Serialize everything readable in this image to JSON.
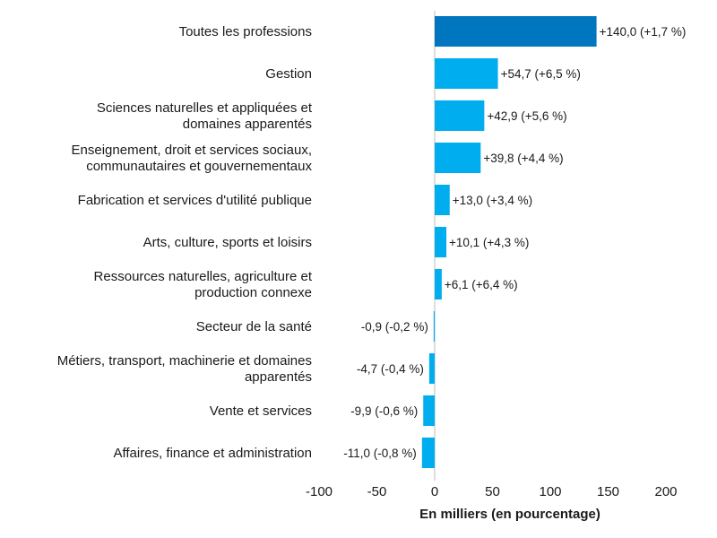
{
  "chart_data": {
    "type": "bar",
    "orientation": "horizontal",
    "categories": [
      [
        "Toutes les professions"
      ],
      [
        "Gestion"
      ],
      [
        "Sciences naturelles et appliquées et",
        "domaines apparentés"
      ],
      [
        "Enseignement, droit et services sociaux,",
        "communautaires et gouvernementaux"
      ],
      [
        "Fabrication et services d'utilité publique"
      ],
      [
        "Arts, culture, sports et loisirs"
      ],
      [
        "Ressources naturelles, agriculture et",
        "production connexe"
      ],
      [
        "Secteur de la santé"
      ],
      [
        "Métiers, transport, machinerie et domaines",
        "apparentés"
      ],
      [
        "Vente et services"
      ],
      [
        "Affaires, finance et administration"
      ]
    ],
    "values": [
      140.0,
      54.7,
      42.9,
      39.8,
      13.0,
      10.1,
      6.1,
      -0.9,
      -4.7,
      -9.9,
      -11.0
    ],
    "data_labels": [
      "+140,0 (+1,7 %)",
      "+54,7 (+6,5 %)",
      "+42,9 (+5,6 %)",
      "+39,8 (+4,4 %)",
      "+13,0 (+3,4 %)",
      "+10,1 (+4,3 %)",
      "+6,1 (+6,4 %)",
      "-0,9 (-0,2 %)",
      "-4,7 (-0,4 %)",
      "-9,9 (-0,6 %)",
      "-11,0 (-0,8 %)"
    ],
    "xlim": [
      -100,
      200
    ],
    "xticks": [
      -100,
      -50,
      0,
      50,
      100,
      150,
      200
    ],
    "xtick_labels": [
      "-100",
      "-50",
      "0",
      "50",
      "100",
      "150",
      "200"
    ],
    "xlabel": "En milliers (en pourcentage)",
    "ylabel": "",
    "title": "",
    "grid": false,
    "colors": {
      "highlight": "#0076BE",
      "bar": "#00AEEF",
      "zero_line": "#bdbdbd"
    },
    "highlight_index": 0
  }
}
